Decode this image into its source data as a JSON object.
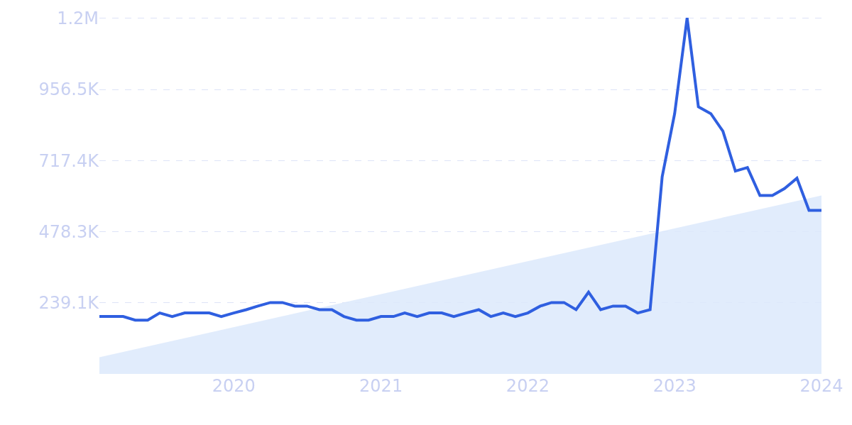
{
  "chart_data": {
    "type": "line",
    "x": [
      "2019-02",
      "2019-03",
      "2019-04",
      "2019-05",
      "2019-06",
      "2019-07",
      "2019-08",
      "2019-09",
      "2019-10",
      "2019-11",
      "2019-12",
      "2020-01",
      "2020-02",
      "2020-03",
      "2020-04",
      "2020-05",
      "2020-06",
      "2020-07",
      "2020-08",
      "2020-09",
      "2020-10",
      "2020-11",
      "2020-12",
      "2021-01",
      "2021-02",
      "2021-03",
      "2021-04",
      "2021-05",
      "2021-06",
      "2021-07",
      "2021-08",
      "2021-09",
      "2021-10",
      "2021-11",
      "2021-12",
      "2022-01",
      "2022-02",
      "2022-03",
      "2022-04",
      "2022-05",
      "2022-06",
      "2022-07",
      "2022-08",
      "2022-09",
      "2022-10",
      "2022-11",
      "2022-12",
      "2023-01",
      "2023-02",
      "2023-03",
      "2023-04",
      "2023-05",
      "2023-06",
      "2023-07",
      "2023-08",
      "2023-09",
      "2023-10",
      "2023-11",
      "2023-12",
      "2024-01"
    ],
    "series": [
      {
        "type": "area",
        "color": "#dce9fb",
        "x": [
          "2019-02",
          "2024-01"
        ],
        "values": [
          56000,
          600000
        ]
      },
      {
        "color": "#2f5fe0",
        "values": [
          193000,
          193000,
          193000,
          181000,
          181000,
          205000,
          193000,
          205000,
          205000,
          205000,
          193000,
          205000,
          216000,
          228000,
          240000,
          240000,
          228000,
          228000,
          216000,
          216000,
          193000,
          181000,
          181000,
          193000,
          193000,
          205000,
          193000,
          205000,
          205000,
          193000,
          205000,
          216000,
          193000,
          205000,
          193000,
          205000,
          228000,
          240000,
          240000,
          216000,
          275000,
          216000,
          228000,
          228000,
          205000,
          216000,
          663000,
          875000,
          1197000,
          898000,
          875000,
          816000,
          682000,
          694000,
          600000,
          600000,
          623000,
          658000,
          550000,
          550000
        ]
      }
    ],
    "xlim": [
      "2019-02",
      "2024-01"
    ],
    "xticks": [
      "2020",
      "2021",
      "2022",
      "2023",
      "2024"
    ],
    "ylim": [
      0,
      1200000
    ],
    "yticks": [
      {
        "value": 239100,
        "label": "239.1K"
      },
      {
        "value": 478300,
        "label": "478.3K"
      },
      {
        "value": 717400,
        "label": "717.4K"
      },
      {
        "value": 956500,
        "label": "956.5K"
      },
      {
        "value": 1195600,
        "label": "1.2M"
      }
    ],
    "grid": "y",
    "marker": "none",
    "line_style": "solid"
  }
}
